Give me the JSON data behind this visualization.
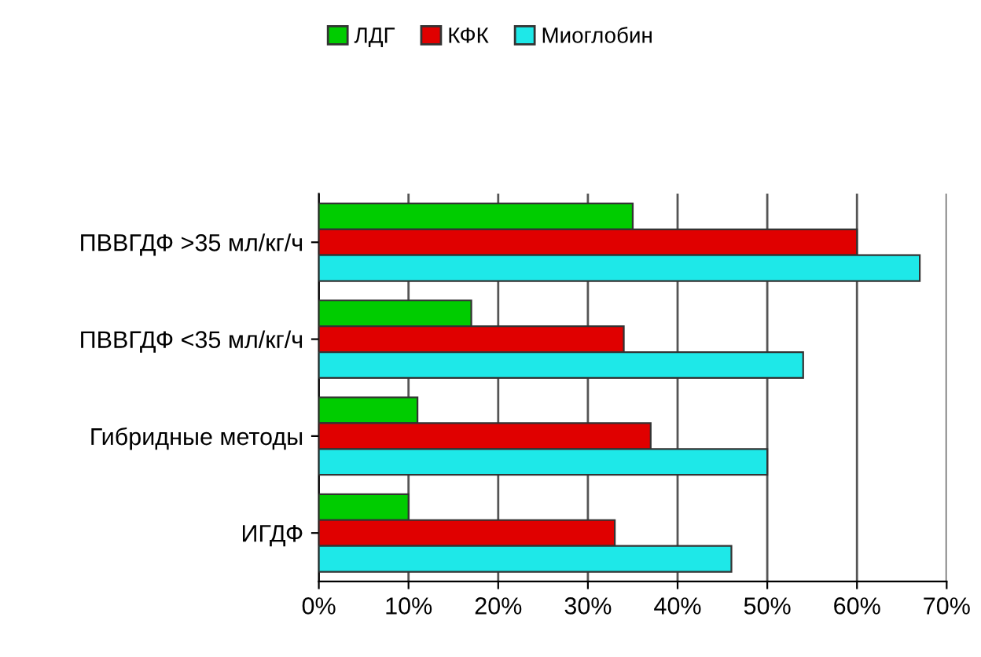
{
  "chart_data": {
    "type": "bar",
    "orientation": "horizontal",
    "categories": [
      "ПВВГДФ >35 мл/кг/ч",
      "ПВВГДФ <35 мл/кг/ч",
      "Гибридные методы",
      "ИГДФ"
    ],
    "series": [
      {
        "name": "ЛДГ",
        "color": "#00cc00",
        "values": [
          35,
          17,
          11,
          10
        ]
      },
      {
        "name": "КФК",
        "color": "#e00000",
        "values": [
          60,
          34,
          37,
          33
        ]
      },
      {
        "name": "Миоглобин",
        "color": "#1ee8e8",
        "values": [
          67,
          54,
          50,
          46
        ]
      }
    ],
    "xlim": [
      0,
      70
    ],
    "xticks": [
      {
        "value": 0,
        "label": "0%"
      },
      {
        "value": 10,
        "label": "10%"
      },
      {
        "value": 20,
        "label": "20%"
      },
      {
        "value": 30,
        "label": "30%"
      },
      {
        "value": 40,
        "label": "40%"
      },
      {
        "value": 50,
        "label": "50%"
      },
      {
        "value": 60,
        "label": "60%"
      },
      {
        "value": 70,
        "label": "70%"
      }
    ],
    "grid": "x",
    "legend": "top"
  }
}
